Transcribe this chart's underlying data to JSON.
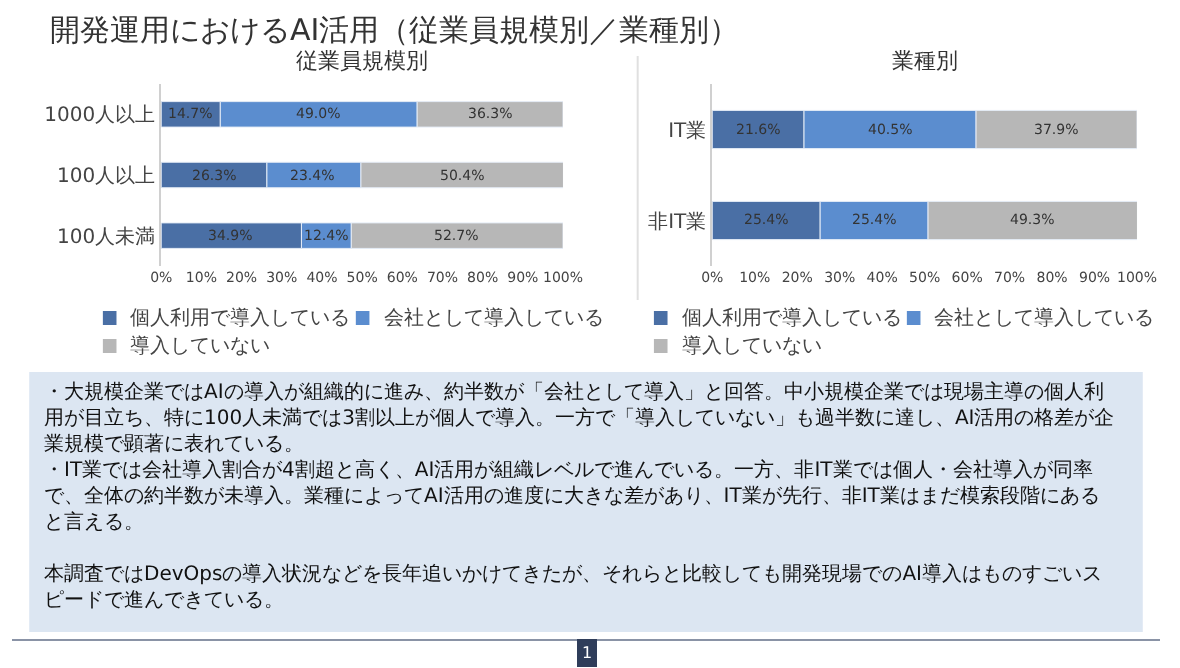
{
  "chart_data": [
    {
      "type": "other",
      "title": "開発運用におけるAI活用（従業員規模別／業種別）",
      "annotations": [
        "・大規模企業ではAIの導入が組織的に進み、約半数が「会社として導入」と回答。中小規模企業では現場主導の個人利用が目立ち、特に100人未満では3割以上が個人で導入。一方で「導入していない」も過半数に達し、AI活用の格差が企業規模で顕著に表れている。",
        "・IT業では会社導入割合が4割超と高く、AI活用が組織レベルで進んでいる。一方、非IT業では個人・会社導入が同率で、全体の約半数が未導入。業種によってAI活用の進度に大きな差があり、IT業が先行、非IT業はまだ模索段階にあると言える。",
        "本調査ではDevOpsの導入状況などを長年追いかけてきたが、それらと比較しても開発現場でのAI導入はものすごいスピードで進んできている。",
        "1"
      ]
    },
    {
      "type": "bar",
      "title": "従業員規模別",
      "orientation": "horizontal",
      "stacked": true,
      "legend": "bottom",
      "categories": [
        "1000人以上",
        "100人以上",
        "100人未満"
      ],
      "xlim": [
        0,
        100
      ],
      "xticks": [
        {
          "value": 0,
          "label": "0%"
        },
        {
          "value": 10,
          "label": "10%"
        },
        {
          "value": 20,
          "label": "20%"
        },
        {
          "value": 30,
          "label": "30%"
        },
        {
          "value": 40,
          "label": "40%"
        },
        {
          "value": 50,
          "label": "50%"
        },
        {
          "value": 60,
          "label": "60%"
        },
        {
          "value": 70,
          "label": "70%"
        },
        {
          "value": 80,
          "label": "80%"
        },
        {
          "value": 90,
          "label": "90%"
        },
        {
          "value": 100,
          "label": "100%"
        }
      ],
      "series": [
        {
          "name": "個人利用で導入している",
          "color": "#4a6fa5",
          "values": [
            14.7,
            26.3,
            34.9
          ],
          "value_labels": [
            "14.7%",
            "26.3%",
            "34.9%"
          ]
        },
        {
          "name": "会社として導入している",
          "color": "#5b8dcf",
          "values": [
            49.0,
            23.4,
            12.4
          ],
          "value_labels": [
            "49.0%",
            "23.4%",
            "12.4%"
          ]
        },
        {
          "name": "導入していない",
          "color": "#b7b7b7",
          "values": [
            36.3,
            50.4,
            52.7
          ],
          "value_labels": [
            "36.3%",
            "50.4%",
            "52.7%"
          ]
        }
      ]
    },
    {
      "type": "bar",
      "title": "業種別",
      "orientation": "horizontal",
      "stacked": true,
      "legend": "bottom",
      "categories": [
        "IT業",
        "非IT業"
      ],
      "xlim": [
        0,
        100
      ],
      "xticks": [
        {
          "value": 0,
          "label": "0%"
        },
        {
          "value": 10,
          "label": "10%"
        },
        {
          "value": 20,
          "label": "20%"
        },
        {
          "value": 30,
          "label": "30%"
        },
        {
          "value": 40,
          "label": "40%"
        },
        {
          "value": 50,
          "label": "50%"
        },
        {
          "value": 60,
          "label": "60%"
        },
        {
          "value": 70,
          "label": "70%"
        },
        {
          "value": 80,
          "label": "80%"
        },
        {
          "value": 90,
          "label": "90%"
        },
        {
          "value": 100,
          "label": "100%"
        }
      ],
      "series": [
        {
          "name": "個人利用で導入している",
          "color": "#4a6fa5",
          "values": [
            21.6,
            25.4
          ],
          "value_labels": [
            "21.6%",
            "25.4%"
          ]
        },
        {
          "name": "会社として導入している",
          "color": "#5b8dcf",
          "values": [
            40.5,
            25.4
          ],
          "value_labels": [
            "40.5%",
            "25.4%"
          ]
        },
        {
          "name": "導入していない",
          "color": "#b7b7b7",
          "values": [
            37.9,
            49.3
          ],
          "value_labels": [
            "37.9%",
            "49.3%"
          ]
        }
      ]
    }
  ]
}
